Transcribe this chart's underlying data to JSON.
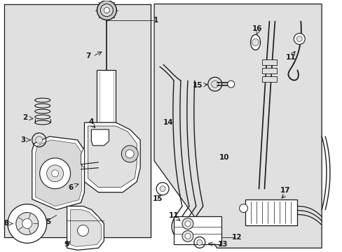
{
  "bg": "#ffffff",
  "gray": "#e0e0e0",
  "black": "#1a1a1a",
  "white": "#ffffff",
  "lw_line": 0.9,
  "lw_thin": 0.5,
  "lw_thick": 1.4,
  "figsize": [
    4.89,
    3.6
  ],
  "dpi": 100
}
